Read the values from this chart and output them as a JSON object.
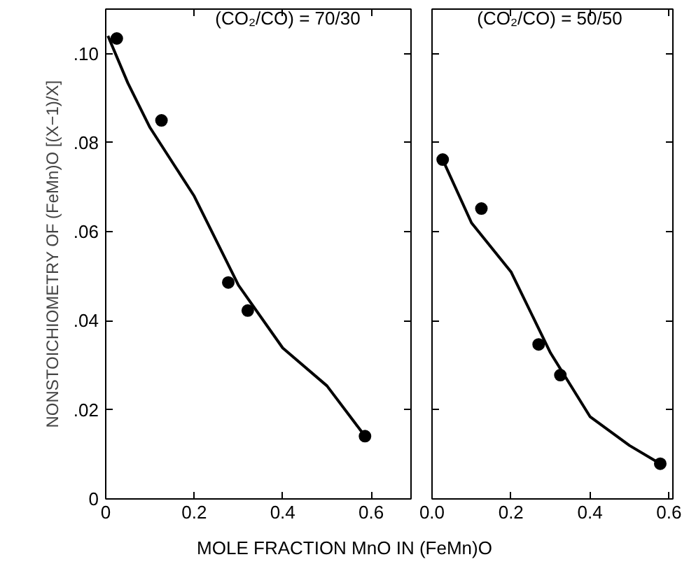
{
  "chart_data": [
    {
      "type": "scatter",
      "xlabel": "MOLE FRACTION MnO IN (FeMn)O",
      "ylabel": "NONSTOICHIOMETRY OF (FeMn)O [(X−1)/X]",
      "annotations": [
        "(CO₂/CO) = 70/30"
      ],
      "xlim": [
        0,
        0.69
      ],
      "ylim": [
        0,
        0.11
      ],
      "xticks": [
        0,
        0.2,
        0.4,
        0.6
      ],
      "yticks": [
        0,
        {
          "value": 0.02,
          "label": ".02"
        },
        {
          "value": 0.04,
          "label": ".04"
        },
        {
          "value": 0.06,
          "label": ".06"
        },
        {
          "value": 0.08,
          "label": ".08"
        },
        {
          "value": 0.1,
          "label": ".10"
        }
      ],
      "grid": false,
      "series": [
        {
          "color": "#000000",
          "marker": "circle",
          "x": [
            0.025,
            0.126,
            0.277,
            0.321,
            0.586
          ],
          "values": [
            0.1034,
            0.085,
            0.0486,
            0.0423,
            0.0141
          ]
        },
        {
          "type": "line",
          "color": "#000000",
          "x": [
            0.005,
            0.05,
            0.1,
            0.2,
            0.3,
            0.4,
            0.5,
            0.586
          ],
          "values": [
            0.104,
            0.0934,
            0.0834,
            0.068,
            0.048,
            0.0339,
            0.0254,
            0.0141
          ]
        }
      ]
    },
    {
      "type": "scatter",
      "annotations": [
        "(CO₂/CO) = 50/50"
      ],
      "xlim": [
        0,
        0.61
      ],
      "ylim": [
        0,
        0.11
      ],
      "xticks": [
        {
          "value": 0,
          "label": "0.0"
        },
        0.2,
        0.4,
        0.6
      ],
      "yticks": [
        0,
        0.02,
        0.04,
        0.06,
        0.08,
        0.1
      ],
      "tick_labels": "x",
      "grid": false,
      "series": [
        {
          "color": "#000000",
          "marker": "circle",
          "x": [
            0.027,
            0.125,
            0.27,
            0.325,
            0.578
          ],
          "values": [
            0.0762,
            0.0652,
            0.0347,
            0.0278,
            0.0079
          ]
        },
        {
          "type": "line",
          "color": "#000000",
          "x": [
            0.027,
            0.1,
            0.2,
            0.3,
            0.4,
            0.5,
            0.578
          ],
          "values": [
            0.0762,
            0.062,
            0.051,
            0.0328,
            0.0185,
            0.012,
            0.0079
          ]
        }
      ]
    }
  ]
}
